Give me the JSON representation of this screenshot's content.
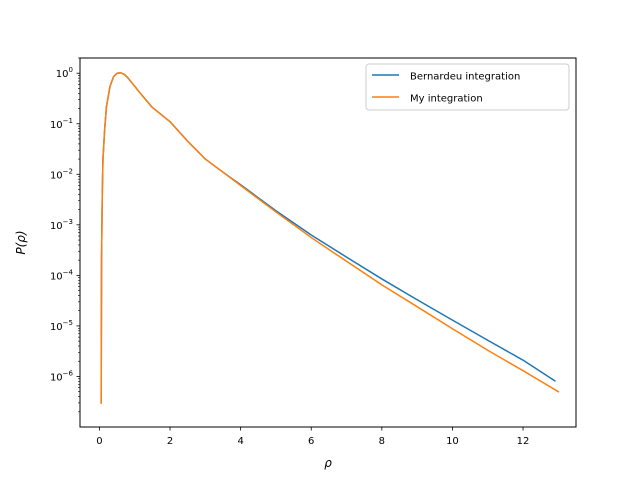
{
  "chart_data": {
    "type": "line",
    "title": "",
    "xlabel": "ρ",
    "ylabel": "P(ρ)",
    "xlim": [
      -0.55,
      13.5
    ],
    "ylim": [
      1e-07,
      2.0
    ],
    "yscale": "log",
    "grid": false,
    "legend_position": "top-right",
    "x_ticks": [
      0,
      2,
      4,
      6,
      8,
      10,
      12
    ],
    "x_tick_labels": [
      "0",
      "2",
      "4",
      "6",
      "8",
      "10",
      "12"
    ],
    "y_ticks": [
      1e-06,
      1e-05,
      0.0001,
      0.001,
      0.01,
      0.1,
      1
    ],
    "y_tick_labels": [
      {
        "base": "10",
        "exp": "−6"
      },
      {
        "base": "10",
        "exp": "−5"
      },
      {
        "base": "10",
        "exp": "−4"
      },
      {
        "base": "10",
        "exp": "−3"
      },
      {
        "base": "10",
        "exp": "−2"
      },
      {
        "base": "10",
        "exp": "−1"
      },
      {
        "base": "10",
        "exp": "0"
      }
    ],
    "series": [
      {
        "name": "Bernardeu integration",
        "color": "#1f77b4",
        "x": [
          0.05,
          0.06,
          0.08,
          0.1,
          0.15,
          0.2,
          0.3,
          0.4,
          0.5,
          0.6,
          0.7,
          0.8,
          1.0,
          1.2,
          1.5,
          2.0,
          2.5,
          3.0,
          3.5,
          4.0,
          5.0,
          6.0,
          7.0,
          8.0,
          9.0,
          10.0,
          11.0,
          12.0,
          12.9
        ],
        "y": [
          3e-07,
          0.0002,
          0.0035,
          0.02,
          0.08,
          0.22,
          0.55,
          0.85,
          1.0,
          1.02,
          0.95,
          0.82,
          0.55,
          0.37,
          0.21,
          0.11,
          0.045,
          0.02,
          0.011,
          0.0062,
          0.0019,
          0.00063,
          0.00023,
          8.5e-05,
          3.3e-05,
          1.3e-05,
          5.2e-06,
          2.1e-06,
          8.2e-07
        ]
      },
      {
        "name": "My integration",
        "color": "#ff7f0e",
        "x": [
          0.05,
          0.06,
          0.08,
          0.1,
          0.15,
          0.2,
          0.3,
          0.4,
          0.5,
          0.6,
          0.7,
          0.8,
          1.0,
          1.2,
          1.5,
          2.0,
          2.5,
          3.0,
          3.5,
          4.0,
          5.0,
          6.0,
          7.0,
          8.0,
          9.0,
          10.0,
          11.0,
          12.0,
          13.0
        ],
        "y": [
          3e-07,
          0.0002,
          0.0035,
          0.02,
          0.08,
          0.22,
          0.55,
          0.85,
          1.0,
          1.02,
          0.95,
          0.82,
          0.55,
          0.37,
          0.21,
          0.11,
          0.045,
          0.02,
          0.011,
          0.006,
          0.0018,
          0.00056,
          0.00019,
          6.5e-05,
          2.4e-05,
          8.8e-06,
          3.3e-06,
          1.3e-06,
          5e-07
        ]
      }
    ]
  }
}
